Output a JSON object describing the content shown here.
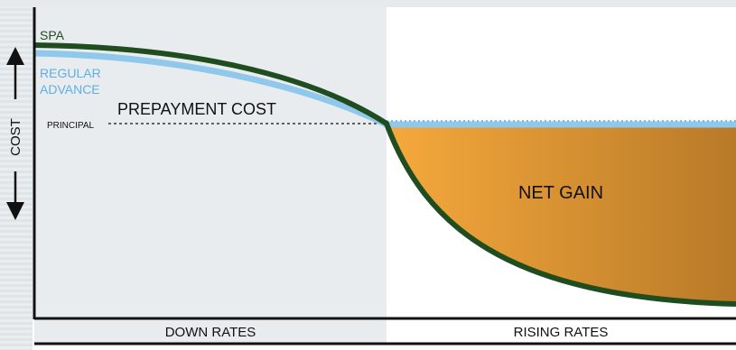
{
  "labels": {
    "spa": "SPA",
    "regular_advance_line1": "REGULAR",
    "regular_advance_line2": "ADVANCE",
    "prepayment_cost": "PREPAYMENT COST",
    "principal": "PRINCIPAL",
    "net_gain": "NET GAIN",
    "cost_axis": "COST",
    "down_rates": "DOWN RATES",
    "rising_rates": "RISING RATES"
  },
  "colors": {
    "spa_line": "#1f4d1f",
    "regular_advance_line": "#8fc8ea",
    "spa_label": "#1f4d1f",
    "regular_advance_label": "#5fb0e2",
    "net_gain_fill_start": "#f6a93c",
    "net_gain_fill_end": "#b87a28",
    "down_rates_background": "#e8ecef",
    "left_stripe_background": "#e3e7eb"
  }
}
